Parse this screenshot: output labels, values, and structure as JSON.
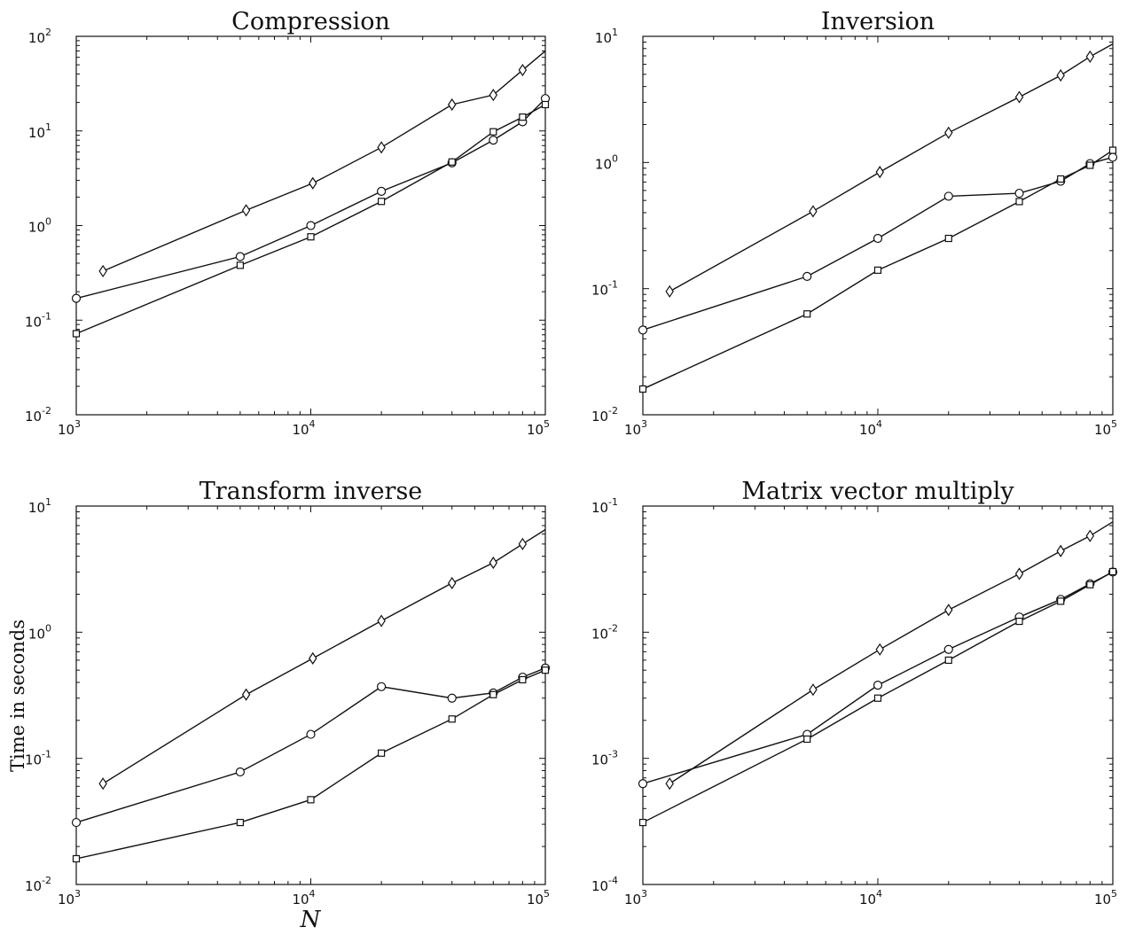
{
  "ylabel": "Time in seconds",
  "xlabel": "N",
  "chart_data": [
    {
      "type": "line",
      "title": "Compression",
      "xscale": "log",
      "yscale": "log",
      "xlim": [
        1000,
        100000
      ],
      "ylim": [
        0.01,
        100
      ],
      "xticks": [
        {
          "base": "10",
          "exp": "3"
        },
        {
          "base": "10",
          "exp": "4"
        },
        {
          "base": "10",
          "exp": "5"
        }
      ],
      "yticks": [
        {
          "base": "10",
          "exp": "-2"
        },
        {
          "base": "10",
          "exp": "-1"
        },
        {
          "base": "10",
          "exp": "0"
        },
        {
          "base": "10",
          "exp": "1"
        },
        {
          "base": "10",
          "exp": "2"
        }
      ],
      "series": [
        {
          "marker": "diamond",
          "x": [
            1300,
            5300,
            10200,
            20000,
            40000,
            60000,
            80000,
            100000
          ],
          "y": [
            0.33,
            1.45,
            2.8,
            6.7,
            19,
            24,
            44,
            70
          ]
        },
        {
          "marker": "circle",
          "x": [
            1000,
            5000,
            10000,
            20000,
            40000,
            60000,
            80000,
            100000
          ],
          "y": [
            0.17,
            0.47,
            1.0,
            2.3,
            4.6,
            8.0,
            12.5,
            22
          ]
        },
        {
          "marker": "square",
          "x": [
            1000,
            5000,
            10000,
            20000,
            40000,
            60000,
            80000,
            100000
          ],
          "y": [
            0.072,
            0.38,
            0.76,
            1.8,
            4.7,
            9.8,
            14,
            19
          ]
        }
      ]
    },
    {
      "type": "line",
      "title": "Inversion",
      "xscale": "log",
      "yscale": "log",
      "xlim": [
        1000,
        100000
      ],
      "ylim": [
        0.01,
        10
      ],
      "xticks": [
        {
          "base": "10",
          "exp": "3"
        },
        {
          "base": "10",
          "exp": "4"
        },
        {
          "base": "10",
          "exp": "5"
        }
      ],
      "yticks": [
        {
          "base": "10",
          "exp": "-2"
        },
        {
          "base": "10",
          "exp": "-1"
        },
        {
          "base": "10",
          "exp": "0"
        },
        {
          "base": "10",
          "exp": "1"
        }
      ],
      "series": [
        {
          "marker": "diamond",
          "x": [
            1300,
            5300,
            10200,
            20000,
            40000,
            60000,
            80000,
            100000
          ],
          "y": [
            0.095,
            0.41,
            0.84,
            1.72,
            3.3,
            4.9,
            6.9,
            8.7
          ]
        },
        {
          "marker": "circle",
          "x": [
            1000,
            5000,
            10000,
            20000,
            40000,
            60000,
            80000,
            100000
          ],
          "y": [
            0.047,
            0.125,
            0.25,
            0.54,
            0.57,
            0.71,
            0.98,
            1.1
          ]
        },
        {
          "marker": "square",
          "x": [
            1000,
            5000,
            10000,
            20000,
            40000,
            60000,
            80000,
            100000
          ],
          "y": [
            0.016,
            0.063,
            0.14,
            0.25,
            0.49,
            0.74,
            0.95,
            1.25
          ]
        }
      ]
    },
    {
      "type": "line",
      "title": "Transform inverse",
      "xscale": "log",
      "yscale": "log",
      "xlim": [
        1000,
        100000
      ],
      "ylim": [
        0.01,
        10
      ],
      "xticks": [
        {
          "base": "10",
          "exp": "3"
        },
        {
          "base": "10",
          "exp": "4"
        },
        {
          "base": "10",
          "exp": "5"
        }
      ],
      "yticks": [
        {
          "base": "10",
          "exp": "-2"
        },
        {
          "base": "10",
          "exp": "-1"
        },
        {
          "base": "10",
          "exp": "0"
        },
        {
          "base": "10",
          "exp": "1"
        }
      ],
      "series": [
        {
          "marker": "diamond",
          "x": [
            1300,
            5300,
            10200,
            20000,
            40000,
            60000,
            80000,
            100000
          ],
          "y": [
            0.063,
            0.32,
            0.62,
            1.23,
            2.45,
            3.55,
            5.0,
            6.5
          ]
        },
        {
          "marker": "circle",
          "x": [
            1000,
            5000,
            10000,
            20000,
            40000,
            60000,
            80000,
            100000
          ],
          "y": [
            0.031,
            0.078,
            0.155,
            0.37,
            0.3,
            0.33,
            0.44,
            0.52
          ]
        },
        {
          "marker": "square",
          "x": [
            1000,
            5000,
            10000,
            20000,
            40000,
            60000,
            80000,
            100000
          ],
          "y": [
            0.016,
            0.031,
            0.047,
            0.11,
            0.205,
            0.32,
            0.42,
            0.5
          ]
        }
      ]
    },
    {
      "type": "line",
      "title": "Matrix vector multiply",
      "xscale": "log",
      "yscale": "log",
      "xlim": [
        1000,
        100000
      ],
      "ylim": [
        0.0001,
        0.1
      ],
      "xticks": [
        {
          "base": "10",
          "exp": "3"
        },
        {
          "base": "10",
          "exp": "4"
        },
        {
          "base": "10",
          "exp": "5"
        }
      ],
      "yticks": [
        {
          "base": "10",
          "exp": "-4"
        },
        {
          "base": "10",
          "exp": "-3"
        },
        {
          "base": "10",
          "exp": "-2"
        },
        {
          "base": "10",
          "exp": "-1"
        }
      ],
      "series": [
        {
          "marker": "diamond",
          "x": [
            1300,
            5300,
            10200,
            20000,
            40000,
            60000,
            80000,
            100000
          ],
          "y": [
            0.00063,
            0.0035,
            0.0073,
            0.015,
            0.029,
            0.044,
            0.058,
            0.075
          ]
        },
        {
          "marker": "circle",
          "x": [
            1000,
            5000,
            10000,
            20000,
            40000,
            60000,
            80000,
            100000
          ],
          "y": [
            0.00063,
            0.00155,
            0.0038,
            0.0073,
            0.0132,
            0.0182,
            0.0242,
            0.03
          ]
        },
        {
          "marker": "square",
          "x": [
            1000,
            5000,
            10000,
            20000,
            40000,
            60000,
            80000,
            100000
          ],
          "y": [
            0.00031,
            0.00142,
            0.003,
            0.006,
            0.0122,
            0.0176,
            0.0238,
            0.0302
          ]
        }
      ]
    }
  ]
}
